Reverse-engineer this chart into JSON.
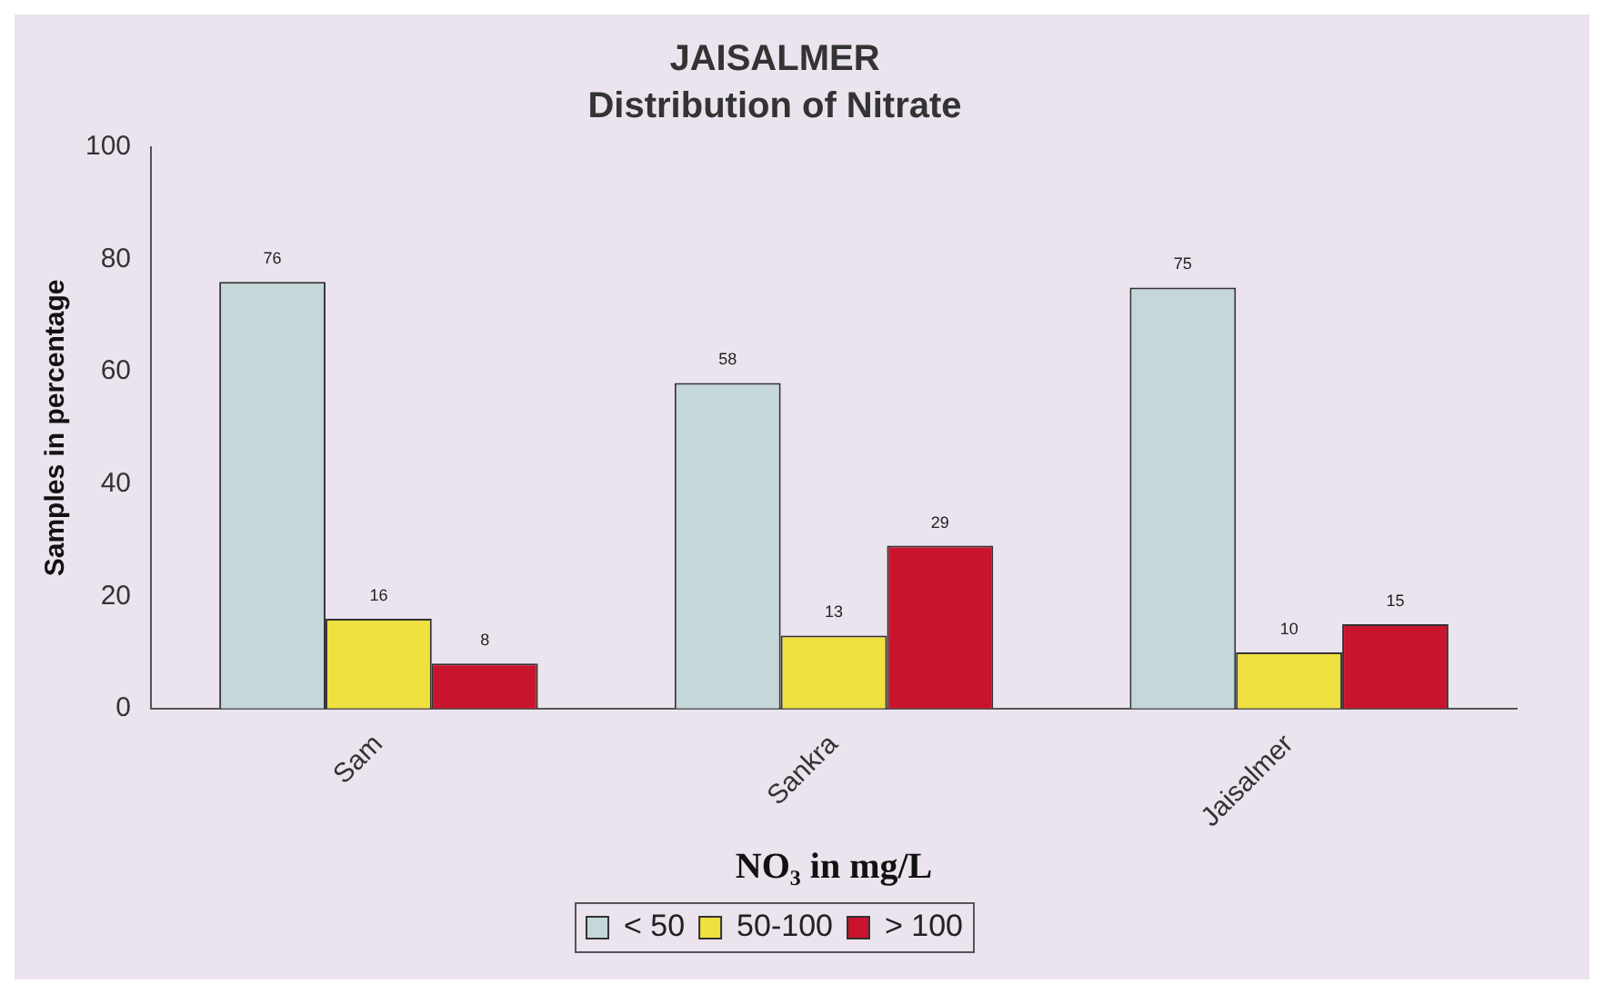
{
  "chart_data": {
    "type": "bar",
    "title": "JAISALMER",
    "subtitle": "Distribution of Nitrate",
    "xlabel": "NO₃ in mg/L",
    "ylabel": "Samples in percentage",
    "categories": [
      "Sam",
      "Sankra",
      "Jaisalmer"
    ],
    "series": [
      {
        "name": "< 50",
        "color": "#c5d7d9",
        "values": [
          76,
          58,
          75
        ]
      },
      {
        "name": "50-100",
        "color": "#f0e040",
        "values": [
          16,
          13,
          10
        ]
      },
      {
        "name": "> 100",
        "color": "#c8142c",
        "values": [
          8,
          29,
          15
        ]
      }
    ],
    "ylim": [
      0,
      100
    ],
    "yticks": [
      0,
      20,
      40,
      60,
      80,
      100
    ],
    "grid": false,
    "legend": "bottom",
    "data_labels": true
  }
}
